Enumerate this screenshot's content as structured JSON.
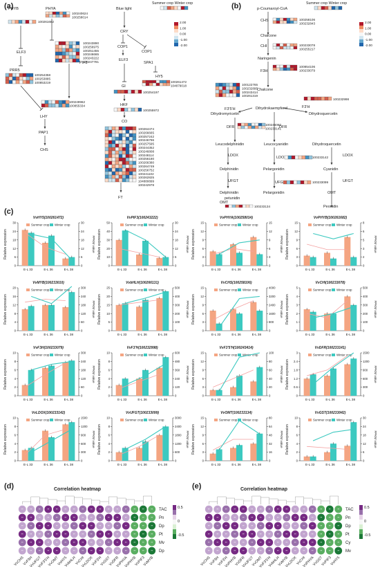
{
  "panel_a": {
    "label": "(a)",
    "nodes": [
      "PHYB",
      "PHYA",
      "Blue light",
      "CRY",
      "COP1",
      "ELF3",
      "COP1",
      "SPA1",
      "ELF3",
      "PIF3",
      "PRR5",
      "HY5",
      "GI",
      "HKF",
      "LHY",
      "CO",
      "PAP1",
      "CHS",
      "FT"
    ],
    "legend_title": "Summer crop  Winter crop",
    "scale": [
      "2.00",
      "1.00",
      "0.00",
      "-1.00",
      "-2.00"
    ],
    "gene_groups": [
      [
        "100240624",
        "100258014"
      ],
      [
        "100261682"
      ],
      [
        "100243890",
        "100256975",
        "100251455",
        "100246665",
        "100243222",
        "100247781"
      ],
      [
        "100254358",
        "100253885",
        "100853219"
      ],
      [
        "100249962",
        "100855334"
      ],
      [
        "100261472",
        "104879018"
      ],
      [
        "100254197"
      ],
      [
        "100255972"
      ],
      [
        "100264474",
        "100266665",
        "100257242",
        "100246796",
        "100257595",
        "100244352",
        "100246808",
        "100248114",
        "100256180",
        "100266380",
        "100264749",
        "100256752",
        "100241102",
        "100262825",
        "104880899",
        "100242978"
      ]
    ]
  },
  "panel_b": {
    "label": "(b)",
    "nodes": [
      "p-Coumaroyl-CoA",
      "CHS",
      "Chalcone",
      "CHI",
      "Naringenin",
      "F3H",
      "Chalcone",
      "F3'5'H",
      "F3'H",
      "Dihydromyricetin",
      "Dihydrokaempferol",
      "Dihydroquercetin",
      "DFR",
      "DFR",
      "Leucodelphinidin",
      "Leucocyanidin",
      "Dihydroquercetin",
      "LDOX",
      "LDOX",
      "LDOX",
      "Delphinidin",
      "Pelargonidin",
      "Cyanidin",
      "UFGT",
      "UFGT",
      "UFGT",
      "Delphinidin",
      "Pelargonidin",
      "Pelargonidin",
      "OMT",
      "OMT",
      "petunidin",
      "Peonidin",
      "OMT",
      "Malvidin"
    ],
    "legend_title": "Summer crop  Winter crop",
    "scale": [
      "2.00",
      "1.00",
      "0.00",
      "-1.00",
      "-2.00"
    ],
    "gene_groups": [
      [
        "100258106",
        "100232843"
      ],
      [
        "100233078",
        "100255217"
      ],
      [
        "100854106",
        "100233079"
      ],
      [
        "100122765",
        "100232895",
        "100243414",
        "100261319"
      ],
      [
        "100232998"
      ],
      [
        "100246060",
        "100233141"
      ],
      [
        "100233142"
      ],
      [
        "100233099"
      ],
      [
        "100233134"
      ]
    ]
  },
  "panel_c": {
    "label": "(c)",
    "legend": [
      "Summer crop",
      "Winter crop"
    ],
    "ylabel": "Relative expression",
    "y2label": "FPKM value",
    "categories": [
      "E-L 33",
      "E-L 36",
      "E-L 38"
    ]
  },
  "chart_data": [
    {
      "type": "bar",
      "title": "VvHY5(100261472)",
      "categories": [
        "E-L 33",
        "E-L 36",
        "E-L 38"
      ],
      "series": [
        {
          "name": "Summer crop",
          "values": [
            25,
            16,
            5
          ]
        },
        {
          "name": "Winter crop",
          "values": [
            23,
            21,
            6
          ]
        }
      ],
      "ylim": [
        0,
        30
      ],
      "y2lim": [
        0,
        30
      ],
      "fpkm_summer": [
        23,
        13,
        8
      ],
      "fpkm_winter": [
        22,
        19,
        4
      ]
    },
    {
      "type": "bar",
      "title": "VvPIF3(100243222)",
      "categories": [
        "E-L 33",
        "E-L 36",
        "E-L 38"
      ],
      "series": [
        {
          "name": "Summer crop",
          "values": [
            30,
            13,
            9
          ]
        },
        {
          "name": "Winter crop",
          "values": [
            41,
            29,
            10
          ]
        }
      ],
      "ylim": [
        0,
        50
      ],
      "y2lim": [
        0,
        30
      ],
      "fpkm_summer": [
        12,
        9,
        6
      ],
      " fpkm_winter": [
        25,
        18,
        6
      ]
    },
    {
      "type": "bar",
      "title": "VvPHYA(100258014)",
      "categories": [
        "E-L 33",
        "E-L 36",
        "E-L 38"
      ],
      "series": [
        {
          "name": "Summer crop",
          "values": [
            5,
            7.5,
            10
          ]
        },
        {
          "name": "Winter crop",
          "values": [
            4,
            4.5,
            4
          ]
        }
      ],
      "ylim": [
        0,
        15
      ],
      "y2lim": [
        0,
        15
      ],
      "fpkm_summer": [
        4,
        6,
        5
      ],
      "fpkm_winter": [
        4,
        8,
        9
      ]
    },
    {
      "type": "bar",
      "title": "VvPHYB(100261682)",
      "categories": [
        "E-L 33",
        "E-L 36",
        "E-L 38"
      ],
      "series": [
        {
          "name": "Summer crop",
          "values": [
            3.5,
            4.5,
            10
          ]
        },
        {
          "name": "Winter crop",
          "values": [
            3,
            2.5,
            3
          ]
        }
      ],
      "ylim": [
        0,
        15
      ],
      "y2lim": [
        0,
        8
      ],
      "fpkm_summer": [
        4,
        3,
        3
      ],
      "fpkm_winter": [
        6,
        5,
        6
      ]
    },
    {
      "type": "bar",
      "title": "VvMYB(100233010)",
      "categories": [
        "E-L 33",
        "E-L 36",
        "E-L 38"
      ],
      "series": [
        {
          "name": "Summer crop",
          "values": [
            10,
            12,
            11
          ]
        },
        {
          "name": "Winter crop",
          "values": [
            11.5,
            12,
            18
          ]
        }
      ],
      "ylim": [
        0,
        20
      ],
      "y2lim": [
        0,
        300
      ],
      "fpkm_summer": [
        200,
        220,
        210
      ],
      "fpkm_winter": [
        240,
        190,
        310
      ]
    },
    {
      "type": "bar",
      "title": "VvbHLH(100266131)",
      "categories": [
        "E-L 33",
        "E-L 36",
        "E-L 38"
      ],
      "series": [
        {
          "name": "Summer crop",
          "values": [
            15,
            14,
            19
          ]
        },
        {
          "name": "Winter crop",
          "values": [
            16,
            18,
            23
          ]
        }
      ],
      "ylim": [
        0,
        25
      ],
      "y2lim": [
        0,
        500
      ],
      "fpkm_summer": [
        300,
        330,
        360
      ],
      "fpkm_winter": [
        320,
        380,
        450
      ]
    },
    {
      "type": "bar",
      "title": "VvCHS(100258106)",
      "categories": [
        "E-L 33",
        "E-L 36",
        "E-L 38"
      ],
      "series": [
        {
          "name": "Summer crop",
          "values": [
            7,
            7.5,
            10
          ]
        },
        {
          "name": "Winter crop",
          "values": [
            2.5,
            6,
            7
          ]
        }
      ],
      "ylim": [
        0,
        15
      ],
      "y2lim": [
        0,
        4000
      ],
      "fpkm_summer": [
        1000,
        2000,
        2800
      ],
      "fpkm_winter": [
        300,
        3000,
        3200
      ]
    },
    {
      "type": "bar",
      "title": "VvCHI(100233078)",
      "categories": [
        "E-L 33",
        "E-L 36",
        "E-L 38"
      ],
      "series": [
        {
          "name": "Summer crop",
          "values": [
            2.5,
            2,
            4
          ]
        },
        {
          "name": "Winter crop",
          "values": [
            2.2,
            2,
            3
          ]
        }
      ],
      "ylim": [
        0,
        5
      ],
      "y2lim": [
        0,
        500
      ],
      "fpkm_summer": [
        200,
        150,
        350
      ],
      "fpkm_winter": [
        150,
        200,
        280
      ]
    },
    {
      "type": "bar",
      "title": "VvF3H(100233079)",
      "categories": [
        "E-L 33",
        "E-L 36",
        "E-L 38"
      ],
      "series": [
        {
          "name": "Summer crop",
          "values": [
            2.5,
            6.5,
            7.8
          ]
        },
        {
          "name": "Winter crop",
          "values": [
            6,
            7,
            8.2
          ]
        }
      ],
      "ylim": [
        0,
        10
      ],
      "y2lim": [
        0,
        300
      ],
      "fpkm_summer": [
        60,
        150,
        230
      ],
      "fpkm_winter": [
        180,
        220,
        240
      ]
    },
    {
      "type": "bar",
      "title": "VvF3'H(100232998)",
      "categories": [
        "E-L 33",
        "E-L 36",
        "E-L 38"
      ],
      "series": [
        {
          "name": "Summer crop",
          "values": [
            2.5,
            4,
            6.5
          ]
        },
        {
          "name": "Winter crop",
          "values": [
            4,
            6,
            9
          ]
        }
      ],
      "ylim": [
        0,
        10
      ],
      "y2lim": [
        0,
        600
      ],
      "fpkm_summer": [
        100,
        200,
        300
      ],
      "fpkm_winter": [
        150,
        280,
        450
      ]
    },
    {
      "type": "bar",
      "title": "VvF3'5'H(100243414)",
      "categories": [
        "E-L 33",
        "E-L 36",
        "E-L 38"
      ],
      "series": [
        {
          "name": "Summer crop",
          "values": [
            2,
            3,
            5
          ]
        },
        {
          "name": "Winter crop",
          "values": [
            2,
            7,
            10
          ]
        }
      ],
      "ylim": [
        0,
        15
      ],
      "y2lim": [
        0,
        100
      ],
      "fpkm_summer": [
        20,
        40,
        60
      ],
      "fpkm_winter": [
        10,
        90,
        100
      ]
    },
    {
      "type": "bar",
      "title": "VvDFR(100233141)",
      "categories": [
        "E-L 33",
        "E-L 36",
        "E-L 38"
      ],
      "series": [
        {
          "name": "Summer crop",
          "values": [
            1.2,
            1.4,
            2.2
          ]
        },
        {
          "name": "Winter crop",
          "values": [
            1.5,
            1.9,
            2.6
          ]
        }
      ],
      "ylim": [
        0,
        3
      ],
      "y2lim": [
        0,
        1500
      ],
      "fpkm_summer": [
        700,
        900,
        1400
      ],
      "fpkm_winter": [
        400,
        1000,
        1500
      ]
    },
    {
      "type": "bar",
      "title": "VvLDOX(100233142)",
      "categories": [
        "E-L 33",
        "E-L 36",
        "E-L 38"
      ],
      "series": [
        {
          "name": "Summer crop",
          "values": [
            2.5,
            7,
            8.5
          ]
        },
        {
          "name": "Winter crop",
          "values": [
            3,
            5.5,
            9
          ]
        }
      ],
      "ylim": [
        0,
        10
      ],
      "y2lim": [
        0,
        1500
      ],
      "fpkm_summer": [
        200,
        900,
        1100
      ],
      "fpkm_winter": [
        300,
        700,
        1100
      ]
    },
    {
      "type": "bar",
      "title": "VvUFGT(100233099)",
      "categories": [
        "E-L 33",
        "E-L 36",
        "E-L 38"
      ],
      "series": [
        {
          "name": "Summer crop",
          "values": [
            2,
            3,
            6
          ]
        },
        {
          "name": "Winter crop",
          "values": [
            3,
            4.5,
            8
          ]
        }
      ],
      "ylim": [
        0,
        10
      ],
      "y2lim": [
        0,
        3000
      ],
      "fpkm_summer": [
        400,
        1000,
        1800
      ],
      "fpkm_winter": [
        800,
        1500,
        2400
      ]
    },
    {
      "type": "bar",
      "title": "VvOMT(100233134)",
      "categories": [
        "E-L 33",
        "E-L 36",
        "E-L 38"
      ],
      "series": [
        {
          "name": "Summer crop",
          "values": [
            2.5,
            4.5,
            6
          ]
        },
        {
          "name": "Winter crop",
          "values": [
            4,
            5.5,
            9.5
          ]
        }
      ],
      "ylim": [
        0,
        15
      ],
      "y2lim": [
        0,
        80
      ],
      "fpkm_summer": [
        20,
        40,
        40
      ],
      "fpkm_winter": [
        20,
        75,
        50
      ]
    },
    {
      "type": "bar",
      "title": "VvGST(100233042)",
      "categories": [
        "E-L 33",
        "E-L 36",
        "E-L 38"
      ],
      "series": [
        {
          "name": "Summer crop",
          "values": [
            1,
            2,
            3.5
          ]
        },
        {
          "name": "Winter crop",
          "values": [
            1,
            4,
            9
          ]
        }
      ],
      "ylim": [
        0,
        10
      ],
      "y2lim": [
        0,
        30
      ],
      "fpkm_summer": [
        10,
        9,
        8
      ],
      "fpkm_winter": [
        14,
        20,
        22
      ]
    }
  ],
  "panel_d": {
    "label": "(d)",
    "title": "Correlation heatmap",
    "rows": [
      "TAC",
      "Pn",
      "Dp",
      "Pt",
      "Mv",
      "Dp"
    ],
    "cols": [
      "VvCHS",
      "VvF3H",
      "VvUFGT",
      "VvF3'5'H",
      "VvOMT",
      "VvHY5",
      "VvbHLH",
      "VvCHI",
      "VvLDOX",
      "VvF3'H",
      "VvGST",
      "VvDFR",
      "VvPHYA",
      "VvPHYB",
      "VvPIF3",
      "VvMYB"
    ],
    "scale": [
      "0.5",
      "0",
      "-0.5"
    ]
  },
  "panel_e": {
    "label": "(e)",
    "title": "Correlation heatmap",
    "rows": [
      "TAC",
      "Pn",
      "Dp",
      "Pt",
      "Cy",
      "Mv"
    ],
    "cols": [
      "VvCHS",
      "VvF3H",
      "VvF3'H",
      "VvPHYB",
      "VvDFR",
      "VvUFGT",
      "VvOMT",
      "VvF3'5'H",
      "VvbHLH",
      "VvMYB",
      "VvLDOX",
      "VvCHI",
      "VvPHYA",
      "VvGST",
      "VvPIF3",
      "VvHY5"
    ],
    "scale": [
      "0.5",
      "0",
      "-0.5"
    ]
  },
  "colors": {
    "summer": "#f4a582",
    "winter": "#3cc9c0",
    "hm_high": "#d6604d",
    "hm_low": "#2166ac",
    "corr_pos": "#8e44ad",
    "corr_neg": "#1a9850"
  }
}
